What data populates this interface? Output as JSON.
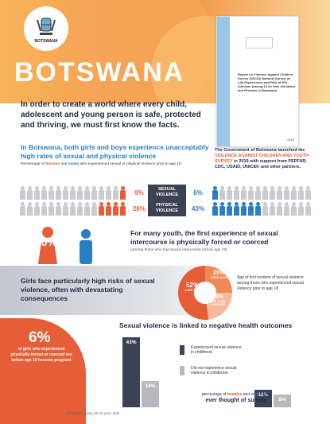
{
  "header": {
    "logo_text": "BOTSWANA",
    "country": "BOTSWANA",
    "intro": "In order to create a world where every child, adolescent and young person is safe, protected and thriving, we must first know the facts."
  },
  "report_cover": {
    "title": "Report on Violence Against Children Survey (VACS)/ National Survey on Life Experiences and Risk of HIV Infection Among 13-24 Year Old Males and Females in Botswana",
    "year": "2019"
  },
  "government_note": {
    "prefix": "The Government of Botswana launched the ",
    "highlight": "VIOLENCE AGAINST CHILDREN AND YOUTH SURVEY",
    "suffix": " in 2019 with support from PEPFAR, CDC, USAID, UNICEF, and other partners."
  },
  "section1": {
    "heading": "In Botswana, both girls and boys experience unacceptably high rates of sexual and physical violence",
    "note_prefix": "Percentage of ",
    "note_females": "females",
    "note_and": " and ",
    "note_males": "males",
    "note_suffix": " who experienced sexual or physical violence prior to age 18",
    "sexual_label": "SEXUAL VIOLENCE",
    "physical_label": "PHYSICAL VIOLENCE",
    "sexual_female": "9%",
    "sexual_male": "6%",
    "physical_female": "28%",
    "physical_male": "43%"
  },
  "section2": {
    "female_pct": "10%",
    "male_pct": "2%",
    "heading": "For many youth, the first experience of sexual intercourse is physically forced or coerced",
    "note": "(among those who had sexual intercourse before age 18)"
  },
  "section3": {
    "heading": "Girls face particularly high risks of sexual violence, often with devastating consequences",
    "note": "Age of first incident of sexual violence among those who experienced sexual violence prior to age 18",
    "donut": [
      {
        "label": "52%",
        "sub": "AGES 16-17",
        "value": 52,
        "color": "#e55e37"
      },
      {
        "label": "25%",
        "sub": "AGES 14-15",
        "value": 25,
        "color": "#f08a55"
      },
      {
        "label": "23%",
        "sub": "AGE 13 OR YOUNGER",
        "value": 23,
        "color": "#f6b99a"
      }
    ]
  },
  "section4": {
    "heading": "Sexual violence is linked to negative health outcomes",
    "pregnancy_pct": "6%",
    "pregnancy_text": "of girls who experienced physically forced or coerced sex before age 18 become pregnant",
    "legend_experienced": "Experienced sexual violence in childhood",
    "legend_not": "Did not experience sexual violence in childhood",
    "suicide_prefix": "percentage of ",
    "suicide_females": "females",
    "suicide_and": " and ",
    "suicide_males": "males",
    "suicide_suffix": " who",
    "suicide_line2": "ever thought of suicide"
  },
  "chart_data": {
    "type": "bar",
    "title": "",
    "categories": [
      "females",
      "males"
    ],
    "series": [
      {
        "name": "Experienced sexual violence in childhood",
        "values": [
          43,
          11
        ]
      },
      {
        "name": "Did not experience sexual violence in childhood",
        "values": [
          16,
          8
        ]
      }
    ],
    "ylim": [
      0,
      45
    ],
    "labels": [
      "43%",
      "16%",
      "11%",
      "8%"
    ],
    "colors": {
      "experienced": "#3b4254",
      "not": "#b7b9bf"
    }
  },
  "footer": {
    "note": "All data among 18-24 year olds"
  },
  "colors": {
    "female": "#e55e37",
    "male": "#2a7fc4",
    "dark": "#3b4254"
  }
}
